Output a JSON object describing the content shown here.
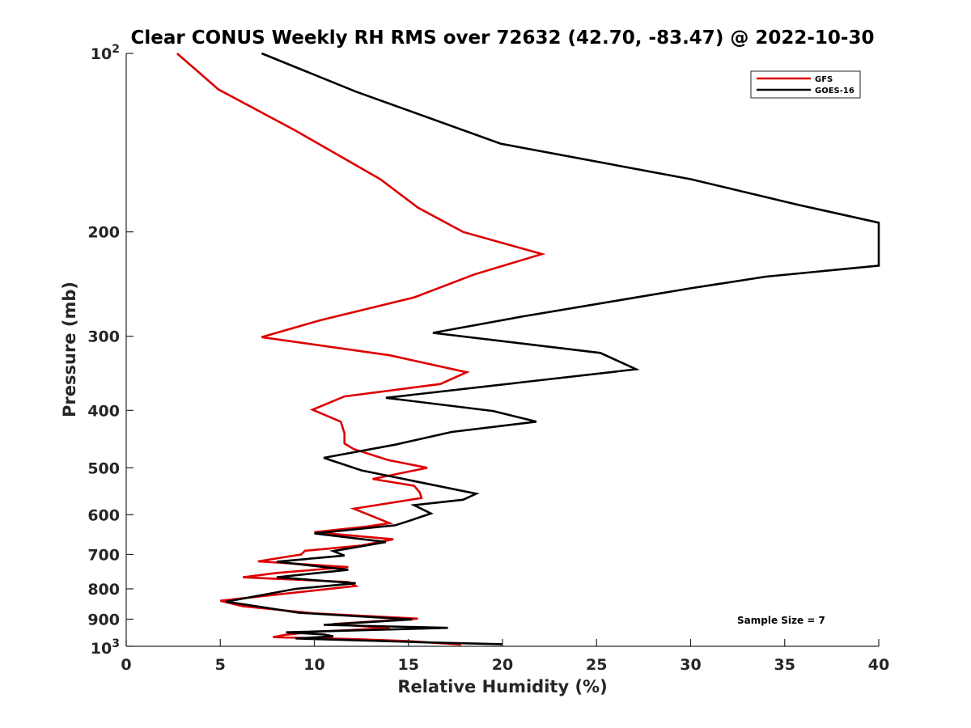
{
  "chart_data": {
    "type": "line",
    "title": "Clear CONUS Weekly RH RMS over 72632 (42.70, -83.47) @ 2022-10-30",
    "xlabel": "Relative Humidity (%)",
    "ylabel": "Pressure (mb)",
    "xlim": [
      0,
      40
    ],
    "ylim": [
      100,
      1000
    ],
    "y_scale": "log",
    "y_reversed": true,
    "grid": false,
    "legend_position": "top-right",
    "x_ticks": [
      "0",
      "5",
      "10",
      "15",
      "20",
      "25",
      "30",
      "35",
      "40"
    ],
    "x_tick_values": [
      0,
      5,
      10,
      15,
      20,
      25,
      30,
      35,
      40
    ],
    "y_tick_values": [
      100,
      200,
      300,
      400,
      500,
      600,
      700,
      800,
      900,
      1000
    ],
    "y_ticks": [
      {
        "base": "10",
        "exp": "2"
      },
      {
        "base": "200",
        "exp": ""
      },
      {
        "base": "300",
        "exp": ""
      },
      {
        "base": "400",
        "exp": ""
      },
      {
        "base": "500",
        "exp": ""
      },
      {
        "base": "600",
        "exp": ""
      },
      {
        "base": "700",
        "exp": ""
      },
      {
        "base": "800",
        "exp": ""
      },
      {
        "base": "900",
        "exp": ""
      },
      {
        "base": "10",
        "exp": "3"
      }
    ],
    "series": [
      {
        "name": "GFS",
        "color": "#dd0000",
        "points": [
          [
            2.7,
            100
          ],
          [
            4.9,
            115
          ],
          [
            9.0,
            135
          ],
          [
            13.5,
            163
          ],
          [
            15.5,
            182
          ],
          [
            17.9,
            200
          ],
          [
            22.1,
            218
          ],
          [
            18.5,
            236
          ],
          [
            15.3,
            258
          ],
          [
            10.3,
            282
          ],
          [
            7.2,
            301
          ],
          [
            14.0,
            323
          ],
          [
            18.1,
            345
          ],
          [
            16.7,
            361
          ],
          [
            11.6,
            379
          ],
          [
            9.9,
            399
          ],
          [
            11.4,
            418
          ],
          [
            11.6,
            437
          ],
          [
            11.6,
            455
          ],
          [
            12.1,
            465
          ],
          [
            13.9,
            485
          ],
          [
            16.0,
            500
          ],
          [
            13.1,
            522
          ],
          [
            15.3,
            536
          ],
          [
            15.6,
            550
          ],
          [
            15.7,
            562
          ],
          [
            12.1,
            586
          ],
          [
            14.0,
            620
          ],
          [
            12.8,
            628
          ],
          [
            10.0,
            642
          ],
          [
            14.2,
            660
          ],
          [
            12.5,
            676
          ],
          [
            9.5,
            690
          ],
          [
            9.3,
            700
          ],
          [
            7.0,
            719
          ],
          [
            11.8,
            735
          ],
          [
            8.0,
            752
          ],
          [
            6.2,
            765
          ],
          [
            11.8,
            779
          ],
          [
            12.2,
            791
          ],
          [
            5.0,
            838
          ],
          [
            6.2,
            856
          ],
          [
            10.0,
            880
          ],
          [
            15.5,
            898
          ],
          [
            11.0,
            917
          ],
          [
            14.0,
            932
          ],
          [
            10.0,
            945
          ],
          [
            8.5,
            956
          ],
          [
            7.8,
            965
          ],
          [
            12.0,
            972
          ],
          [
            15.0,
            980
          ],
          [
            17.8,
            993
          ]
        ]
      },
      {
        "name": "GOES-16",
        "color": "#000000",
        "points": [
          [
            7.2,
            100
          ],
          [
            12.2,
            116
          ],
          [
            19.9,
            142
          ],
          [
            30.0,
            163
          ],
          [
            35.7,
            180
          ],
          [
            40.0,
            193
          ],
          [
            40.0,
            228
          ],
          [
            34.0,
            238
          ],
          [
            30.0,
            249
          ],
          [
            21.0,
            278
          ],
          [
            16.3,
            296
          ],
          [
            25.2,
            320
          ],
          [
            27.1,
            341
          ],
          [
            13.8,
            381
          ],
          [
            19.5,
            401
          ],
          [
            21.8,
            418
          ],
          [
            17.3,
            435
          ],
          [
            14.3,
            457
          ],
          [
            10.5,
            481
          ],
          [
            12.5,
            505
          ],
          [
            18.6,
            553
          ],
          [
            17.9,
            566
          ],
          [
            15.3,
            578
          ],
          [
            16.2,
            597
          ],
          [
            15.0,
            615
          ],
          [
            14.3,
            625
          ],
          [
            10.0,
            645
          ],
          [
            13.8,
            667
          ],
          [
            11.0,
            691
          ],
          [
            11.6,
            703
          ],
          [
            8.0,
            720
          ],
          [
            11.8,
            743
          ],
          [
            8.0,
            765
          ],
          [
            12.2,
            783
          ],
          [
            9.0,
            800
          ],
          [
            5.3,
            841
          ],
          [
            6.3,
            850
          ],
          [
            9.2,
            878
          ],
          [
            15.2,
            901
          ],
          [
            10.5,
            920
          ],
          [
            17.1,
            931
          ],
          [
            8.5,
            947
          ],
          [
            10.5,
            955
          ],
          [
            11.0,
            962
          ],
          [
            9.0,
            970
          ],
          [
            16.0,
            985
          ],
          [
            20.0,
            992
          ]
        ]
      }
    ],
    "annotations": [
      "Sample Size = 7"
    ]
  }
}
